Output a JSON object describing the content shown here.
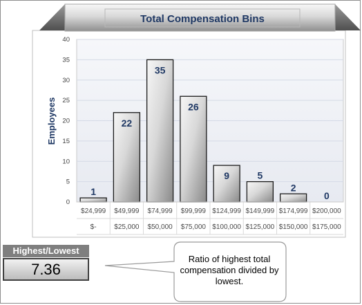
{
  "chart_data": {
    "type": "bar",
    "title": "Total Compensation Bins",
    "ylabel": "Employees",
    "xlabel": "",
    "ylim": [
      0,
      40
    ],
    "yticks": [
      0,
      5,
      10,
      15,
      20,
      25,
      30,
      35,
      40
    ],
    "grid": true,
    "legend": "none",
    "categories_top": [
      "$24,999",
      "$49,999",
      "$74,999",
      "$99,999",
      "$124,999",
      "$149,999",
      "$174,999",
      "$200,000"
    ],
    "categories_bottom": [
      "$-",
      "$25,000",
      "$50,000",
      "$75,000",
      "$100,000",
      "$125,000",
      "$150,000",
      "$175,000"
    ],
    "values": [
      1,
      22,
      35,
      26,
      9,
      5,
      2,
      0
    ],
    "colors": {
      "title": "#1f3864",
      "bar_light": "#f4f4f4",
      "bar_dark": "#8a8a8a",
      "plot_bg": "#f2f4f8",
      "grid": "#d4dae6"
    }
  },
  "stat": {
    "label": "Highest/Lowest",
    "value": "7.36"
  },
  "callout": {
    "text": "Ratio of highest total compensation divided by lowest."
  }
}
